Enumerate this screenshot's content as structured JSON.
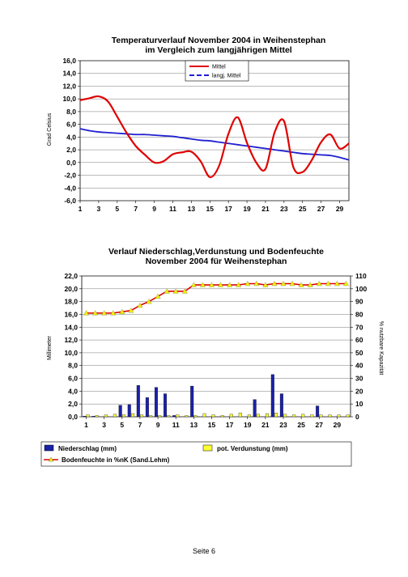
{
  "footer": {
    "page_label": "Seite 6"
  },
  "chart_data": [
    {
      "type": "line",
      "title": "Temperaturverlauf November 2004 in Weihenstephan",
      "subtitle": "im Vergleich zum langjährigen Mittel",
      "ylabel": "Grad Celsius",
      "xlabel": "",
      "ylim": [
        -6,
        16
      ],
      "yticks": [
        "16,0",
        "14,0",
        "12,0",
        "10,0",
        "8,0",
        "6,0",
        "4,0",
        "2,0",
        "0,0",
        "-2,0",
        "-4,0",
        "-6,0"
      ],
      "xticks": [
        1,
        3,
        5,
        7,
        9,
        11,
        13,
        15,
        17,
        19,
        21,
        23,
        25,
        27,
        29
      ],
      "x": [
        1,
        2,
        3,
        4,
        5,
        6,
        7,
        8,
        9,
        10,
        11,
        12,
        13,
        14,
        15,
        16,
        17,
        18,
        19,
        20,
        21,
        22,
        23,
        24,
        25,
        26,
        27,
        28,
        29,
        30
      ],
      "grid": true,
      "legend_position": "top-right",
      "series": [
        {
          "name": "Mittel",
          "color": "#e00000",
          "values": [
            9.8,
            10.1,
            10.4,
            9.6,
            7.2,
            4.7,
            2.6,
            1.2,
            0.0,
            0.2,
            1.3,
            1.6,
            1.7,
            0.2,
            -2.3,
            -0.5,
            4.5,
            7.1,
            3.1,
            0.0,
            -1.0,
            4.8,
            6.5,
            -0.7,
            -1.5,
            0.4,
            3.2,
            4.4,
            2.2,
            3.0
          ]
        },
        {
          "name": "langj. Mittel",
          "color": "#1f1fd0",
          "values": [
            5.3,
            5.0,
            4.8,
            4.7,
            4.6,
            4.5,
            4.4,
            4.4,
            4.3,
            4.2,
            4.1,
            3.9,
            3.7,
            3.5,
            3.4,
            3.2,
            3.0,
            2.8,
            2.6,
            2.4,
            2.2,
            2.0,
            1.8,
            1.6,
            1.4,
            1.3,
            1.2,
            1.1,
            0.8,
            0.4
          ]
        }
      ]
    },
    {
      "type": "bar",
      "title": "Verlauf Niederschlag,Verdunstung und Bodenfeuchte",
      "subtitle": "November 2004 für Weihenstephan",
      "ylabel": "Millimeter",
      "y2label": "% nutzbare Kapazität",
      "ylim": [
        0,
        22
      ],
      "y2lim": [
        0,
        110
      ],
      "yticks": [
        "22,0",
        "20,0",
        "18,0",
        "16,0",
        "14,0",
        "12,0",
        "10,0",
        "8,0",
        "6,0",
        "4,0",
        "2,0",
        "0,0"
      ],
      "y2ticks": [
        "110",
        "100",
        "90",
        "80",
        "70",
        "60",
        "50",
        "40",
        "30",
        "20",
        "10",
        "0"
      ],
      "xticks": [
        1,
        3,
        5,
        7,
        9,
        11,
        13,
        15,
        17,
        19,
        21,
        23,
        25,
        27,
        29
      ],
      "x": [
        1,
        2,
        3,
        4,
        5,
        6,
        7,
        8,
        9,
        10,
        11,
        12,
        13,
        14,
        15,
        16,
        17,
        18,
        19,
        20,
        21,
        22,
        23,
        24,
        25,
        26,
        27,
        28,
        29,
        30
      ],
      "grid": true,
      "legend_position": "bottom",
      "series": [
        {
          "name": "Niederschlag (mm)",
          "type": "bar",
          "color": "#1a22a8",
          "values": [
            0.1,
            0.1,
            0,
            0,
            1.8,
            1.9,
            4.9,
            3.0,
            4.6,
            3.6,
            0.2,
            0,
            4.8,
            0,
            0,
            0,
            0,
            0,
            0,
            2.7,
            0,
            6.6,
            3.6,
            0,
            0,
            0,
            1.7,
            0,
            0,
            0
          ]
        },
        {
          "name": "pot. Verdunstung (mm)",
          "type": "bar",
          "color": "#ffff33",
          "values": [
            0.3,
            0.2,
            0.3,
            0.4,
            0.3,
            0.5,
            0.3,
            0.2,
            0.2,
            0.2,
            0.3,
            0.2,
            0.2,
            0.5,
            0.3,
            0.2,
            0.4,
            0.6,
            0.3,
            0.4,
            0.5,
            0.6,
            0.4,
            0.3,
            0.4,
            0.3,
            0.3,
            0.3,
            0.3,
            0.3
          ]
        },
        {
          "name": "Bodenfeuchte in %nK (Sand.Lehm)",
          "type": "line",
          "axis": "right",
          "color": "#e00000",
          "marker_color": "#f0f000",
          "values": [
            81,
            81,
            81,
            81,
            82,
            83,
            87,
            90,
            94,
            98,
            98,
            98,
            103,
            103,
            103,
            103,
            103,
            103,
            104,
            104,
            103,
            104,
            104,
            104,
            103,
            103,
            104,
            104,
            104,
            104
          ]
        }
      ]
    }
  ]
}
